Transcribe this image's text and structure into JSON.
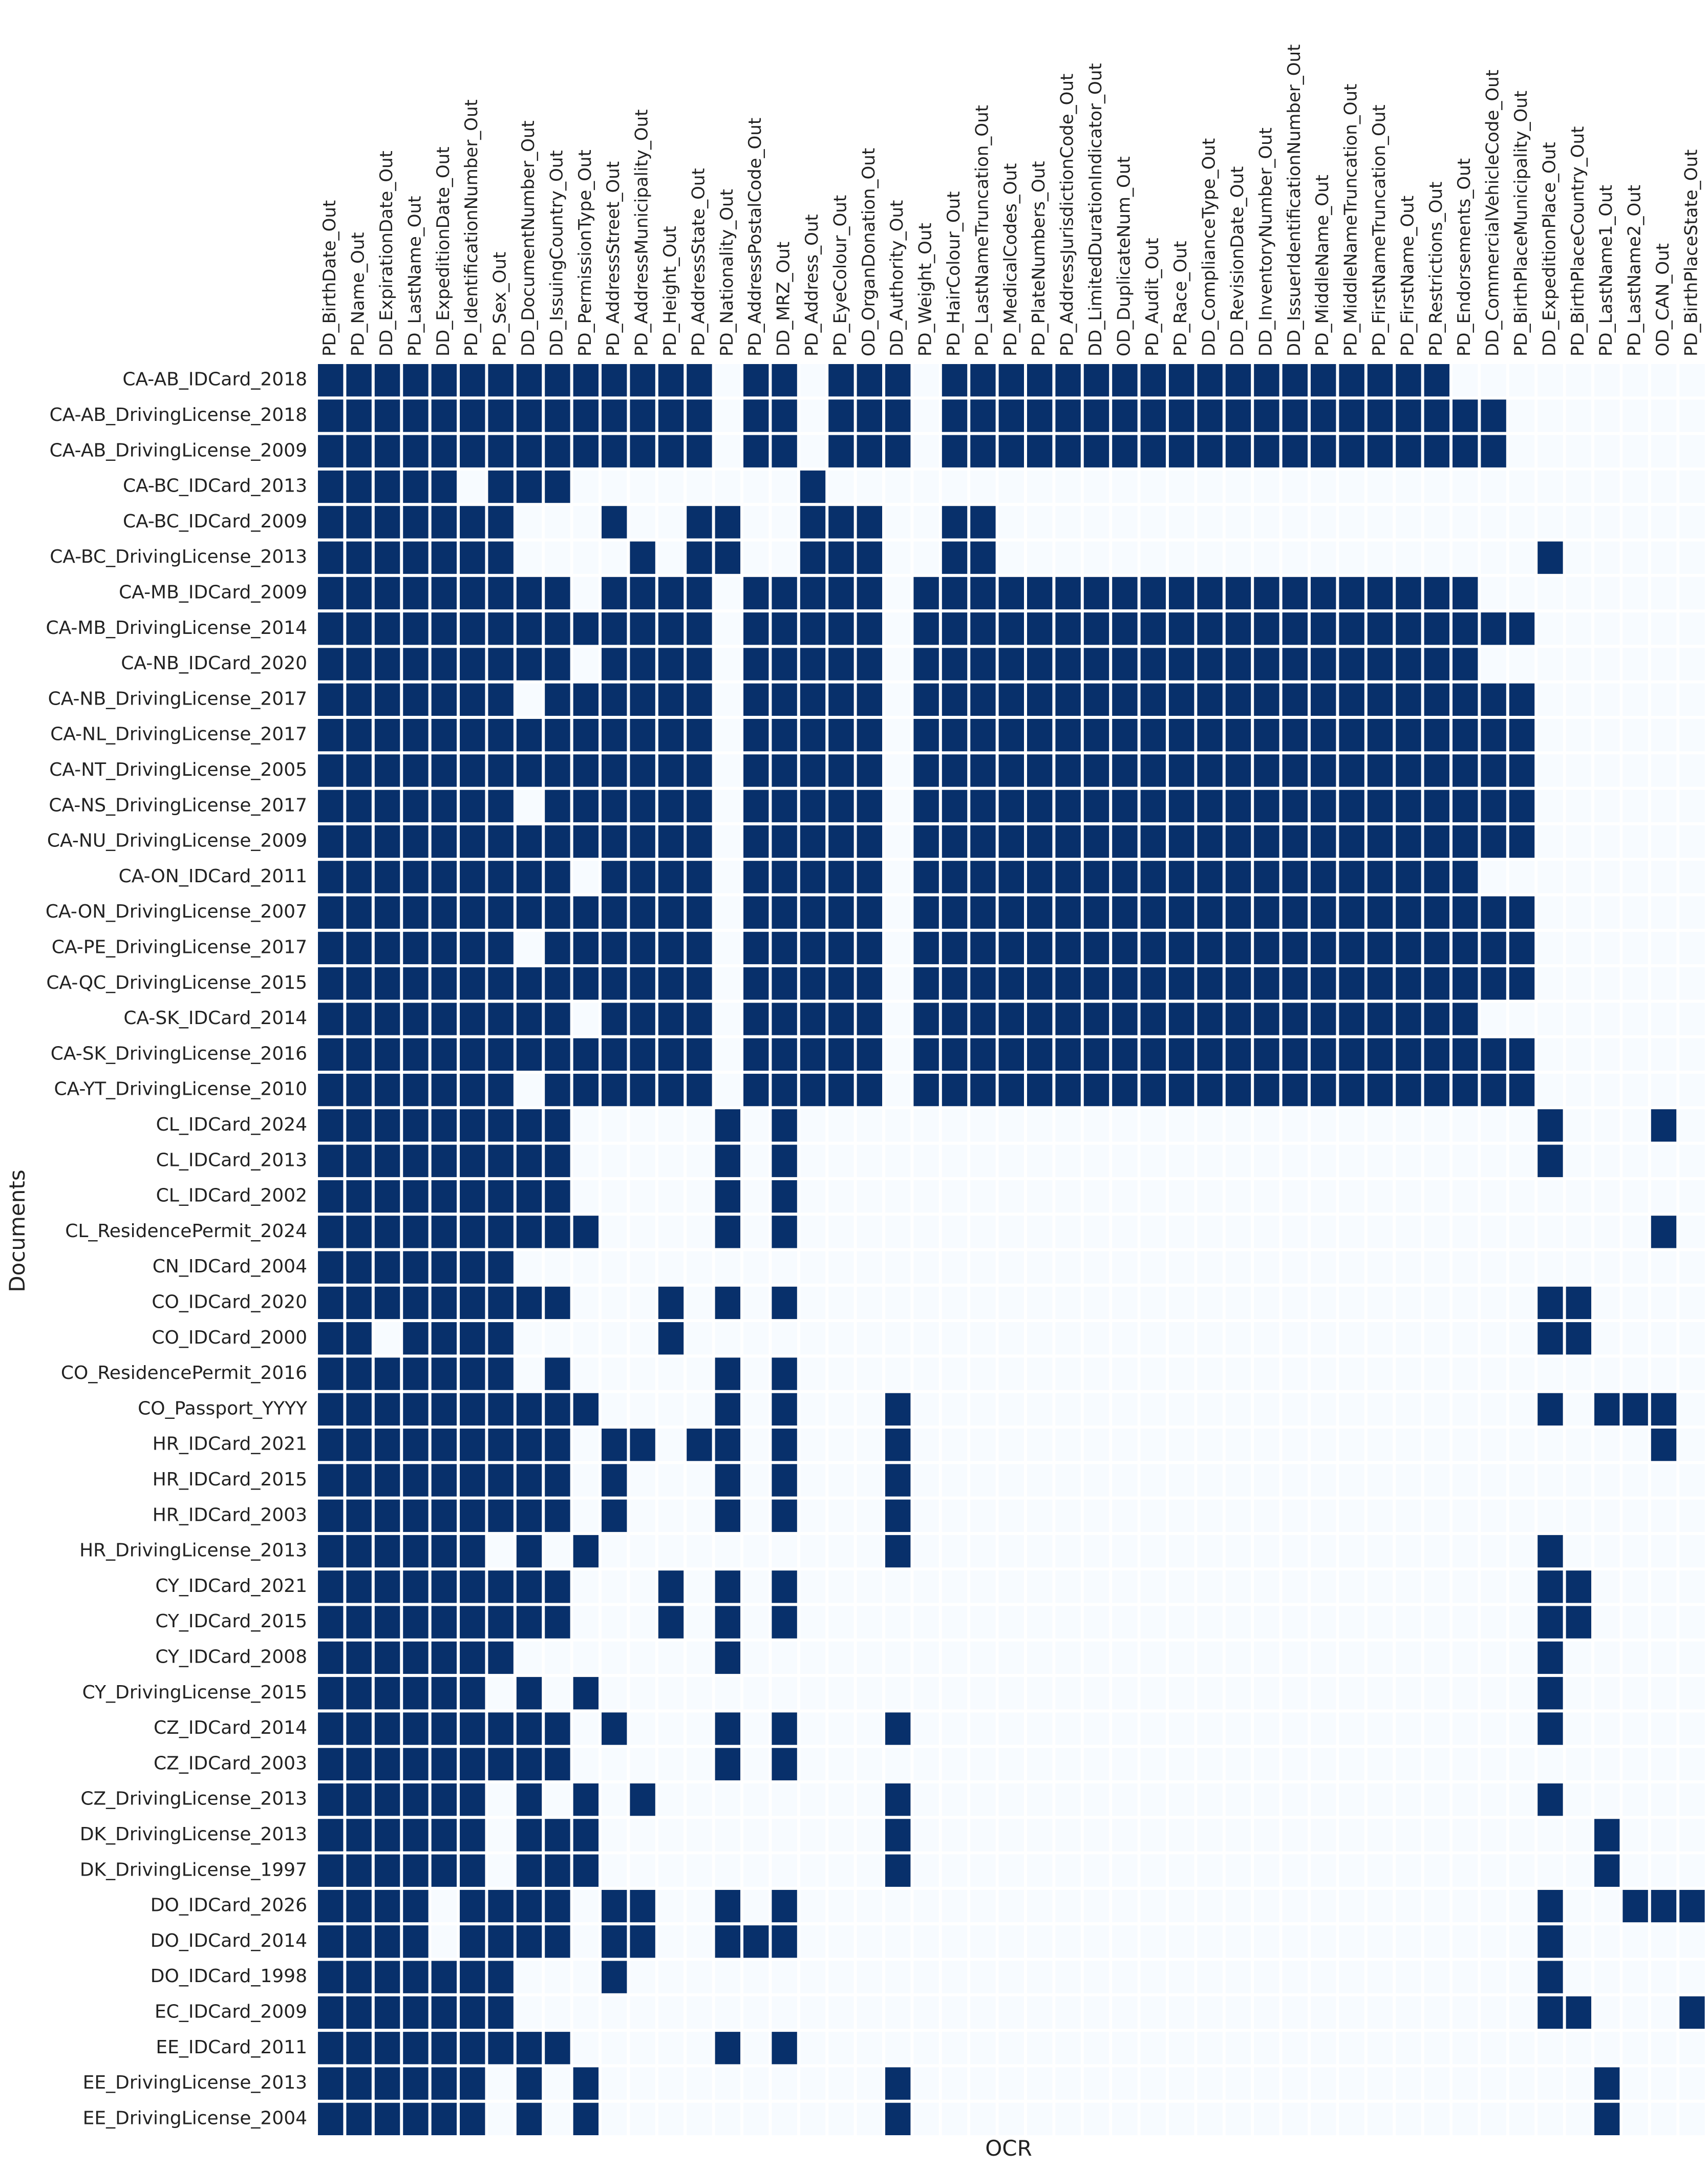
{
  "chart_data": {
    "type": "heatmap",
    "xlabel": "OCR",
    "ylabel": "Documents",
    "colors": {
      "on": "#08306b",
      "off": "#f7fbff",
      "grid": "#ffffff"
    },
    "x": [
      "PD_BirthDate_Out",
      "PD_Name_Out",
      "DD_ExpirationDate_Out",
      "PD_LastName_Out",
      "DD_ExpeditionDate_Out",
      "PD_IdentificationNumber_Out",
      "PD_Sex_Out",
      "DD_DocumentNumber_Out",
      "DD_IssuingCountry_Out",
      "PD_PermissionType_Out",
      "PD_AddressStreet_Out",
      "PD_AddressMunicipality_Out",
      "PD_Height_Out",
      "PD_AddressState_Out",
      "PD_Nationality_Out",
      "PD_AddressPostalCode_Out",
      "DD_MRZ_Out",
      "PD_Address_Out",
      "PD_EyeColour_Out",
      "OD_OrganDonation_Out",
      "DD_Authority_Out",
      "PD_Weight_Out",
      "PD_HairColour_Out",
      "PD_LastNameTruncation_Out",
      "PD_MedicalCodes_Out",
      "PD_PlateNumbers_Out",
      "PD_AddressJurisdictionCode_Out",
      "DD_LimitedDurationIndicator_Out",
      "OD_DuplicateNum_Out",
      "PD_Audit_Out",
      "PD_Race_Out",
      "DD_ComplianceType_Out",
      "DD_RevisionDate_Out",
      "DD_InventoryNumber_Out",
      "DD_IssuerIdentificationNumber_Out",
      "PD_MiddleName_Out",
      "PD_MiddleNameTruncation_Out",
      "PD_FirstNameTruncation_Out",
      "PD_FirstName_Out",
      "PD_Restrictions_Out",
      "PD_Endorsements_Out",
      "DD_CommercialVehicleCode_Out",
      "PD_BirthPlaceMunicipality_Out",
      "DD_ExpeditionPlace_Out",
      "PD_BirthPlaceCountry_Out",
      "PD_LastName1_Out",
      "PD_LastName2_Out",
      "OD_CAN_Out",
      "PD_BirthPlaceState_Out"
    ],
    "y": [
      "CA-AB_IDCard_2018",
      "CA-AB_DrivingLicense_2018",
      "CA-AB_DrivingLicense_2009",
      "CA-BC_IDCard_2013",
      "CA-BC_IDCard_2009",
      "CA-BC_DrivingLicense_2013",
      "CA-MB_IDCard_2009",
      "CA-MB_DrivingLicense_2014",
      "CA-NB_IDCard_2020",
      "CA-NB_DrivingLicense_2017",
      "CA-NL_DrivingLicense_2017",
      "CA-NT_DrivingLicense_2005",
      "CA-NS_DrivingLicense_2017",
      "CA-NU_DrivingLicense_2009",
      "CA-ON_IDCard_2011",
      "CA-ON_DrivingLicense_2007",
      "CA-PE_DrivingLicense_2017",
      "CA-QC_DrivingLicense_2015",
      "CA-SK_IDCard_2014",
      "CA-SK_DrivingLicense_2016",
      "CA-YT_DrivingLicense_2010",
      "CL_IDCard_2024",
      "CL_IDCard_2013",
      "CL_IDCard_2002",
      "CL_ResidencePermit_2024",
      "CN_IDCard_2004",
      "CO_IDCard_2020",
      "CO_IDCard_2000",
      "CO_ResidencePermit_2016",
      "CO_Passport_YYYY",
      "HR_IDCard_2021",
      "HR_IDCard_2015",
      "HR_IDCard_2003",
      "HR_DrivingLicense_2013",
      "CY_IDCard_2021",
      "CY_IDCard_2015",
      "CY_IDCard_2008",
      "CY_DrivingLicense_2015",
      "CZ_IDCard_2014",
      "CZ_IDCard_2003",
      "CZ_DrivingLicense_2013",
      "DK_DrivingLicense_2013",
      "DK_DrivingLicense_1997",
      "DO_IDCard_2026",
      "DO_IDCard_2014",
      "DO_IDCard_1998",
      "EC_IDCard_2009",
      "EE_IDCard_2011",
      "EE_DrivingLicense_2013",
      "EE_DrivingLicense_2004"
    ],
    "z": [
      "1111111111111101101110111111111111111111000000000",
      "1111111111111101101110111111111111111111110000000",
      "1111111111111101101110111111111111111111110000000",
      "1111101110000000010000000000000000000000000000000",
      "1111111000100110011100110000000000000000000000000",
      "1111111000010110011100110000000000000000000100000",
      "1111111110111101111101111111111111111111100000000",
      "1111111111111101111101111111111111111111111000000",
      "1111111110111101111101111111111111111111100000000",
      "1111111011111101111101111111111111111111111000000",
      "1111111111111101111101111111111111111111111000000",
      "1111111111111101111101111111111111111111111000000",
      "1111111011111101111101111111111111111111111000000",
      "1111111111111101111101111111111111111111111000000",
      "1111111110111101111101111111111111111111100000000",
      "1111111111111101111101111111111111111111111000000",
      "1111111011111101111101111111111111111111111000000",
      "1111111111111101111101111111111111111111111000000",
      "1111111110111101111101111111111111111111100000000",
      "1111111111111101111101111111111111111111111000000",
      "1111111011111101111101111111111111111111111000000",
      "1111111110000010100000000000000000000000000100010",
      "1111111110000010100000000000000000000000000100000",
      "1111111110000010100000000000000000000000000000000",
      "1111111111000010100000000000000000000000000000010",
      "1111111000000000000000000000000000000000000000000",
      "1111111110001010100000000000000000000000000110000",
      "1101111000001000000000000000000000000000000110000",
      "1111111010000010100000000000000000000000000000000",
      "1111111111000010100010000000000000000000000101110",
      "1111111110110110100010000000000000000000000000010",
      "1111111110100010100010000000000000000000000000000",
      "1111111110100010100010000000000000000000000000000",
      "1111110101000000000010000000000000000000000100000",
      "1111111110001010100000000000000000000000000110000",
      "1111111110001010100000000000000000000000000110000",
      "1111111000000010000000000000000000000000000100000",
      "1111110101000000000000000000000000000000000100000",
      "1111111110100010100010000000000000000000000100000",
      "1111111110000010100000000000000000000000000000000",
      "1111110101010000000010000000000000000000000100000",
      "1111110111000000000010000000000000000000000001000",
      "1111110111000000000010000000000000000000000001000",
      "1111011110110010100000000000000000000000000100111",
      "1111011110110011100000000000000000000000000100000",
      "1111111000100000000000000000000000000000000100000",
      "1111111000000000000000000000000000000000000110001",
      "1111111110000010100000000000000000000000000000000",
      "1111110101000000000010000000000000000000000001000",
      "1111110101000000000010000000000000000000000001000"
    ],
    "grid": true,
    "legend": false
  }
}
